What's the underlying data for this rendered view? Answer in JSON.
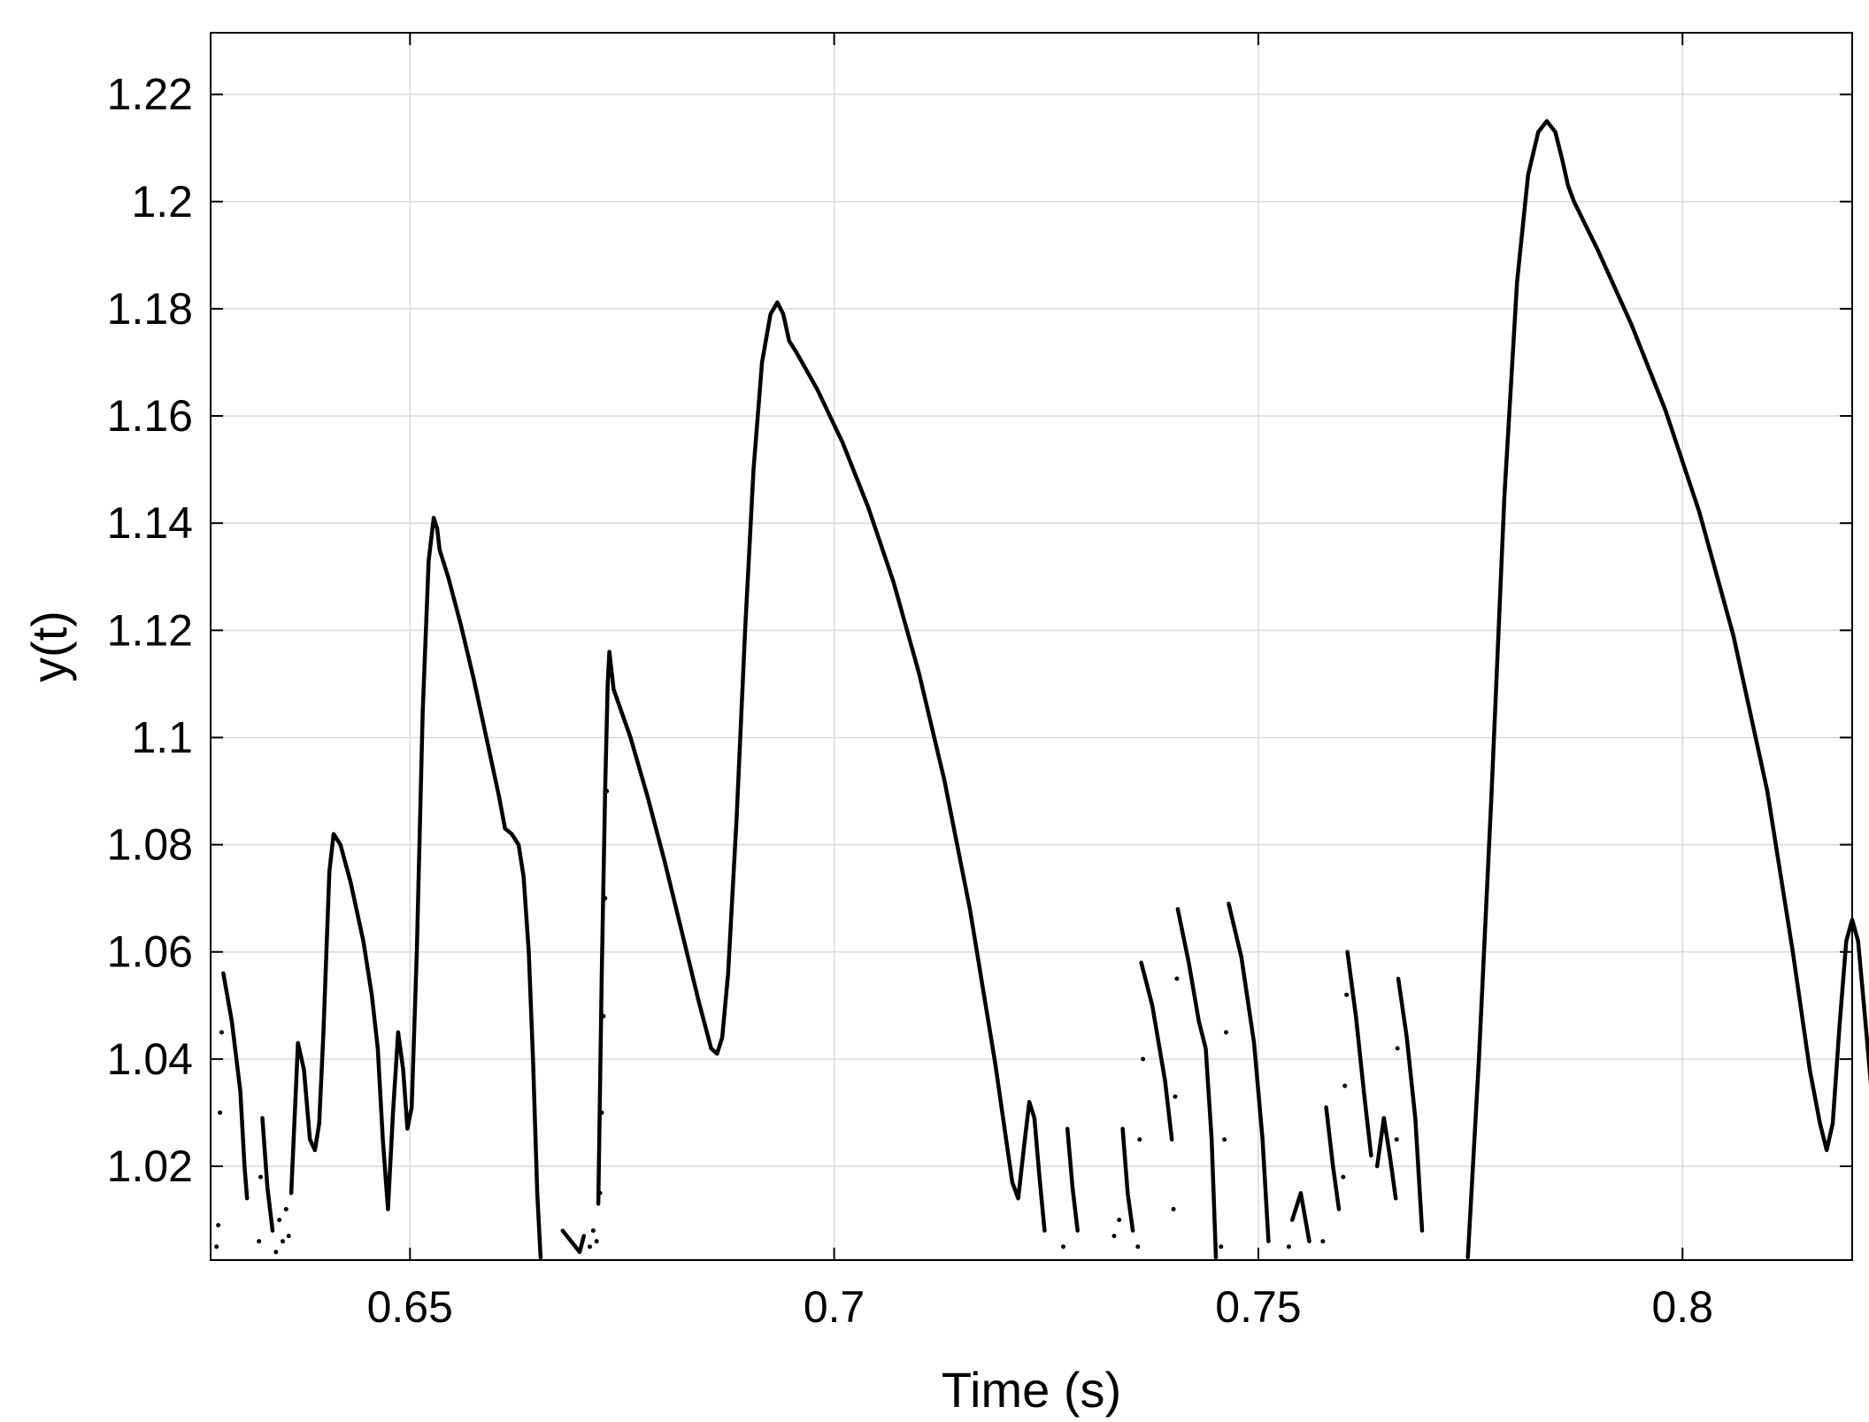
{
  "chart_data": {
    "type": "line",
    "title": "",
    "xlabel": "Time (s)",
    "ylabel": "y(t)",
    "xlim": [
      0.6265,
      0.82
    ],
    "ylim": [
      1.0025,
      1.2315
    ],
    "grid": true,
    "line_color": "#000000",
    "grid_color": "#d9d9d9",
    "xticks": [
      0.65,
      0.7,
      0.75,
      0.8
    ],
    "xtick_labels": [
      "0.65",
      "0.7",
      "0.75",
      "0.8"
    ],
    "yticks": [
      1.02,
      1.04,
      1.06,
      1.08,
      1.1,
      1.12,
      1.14,
      1.16,
      1.18,
      1.2,
      1.22
    ],
    "ytick_labels": [
      "1.02",
      "1.04",
      "1.06",
      "1.08",
      "1.1",
      "1.12",
      "1.14",
      "1.16",
      "1.18",
      "1.2",
      "1.22"
    ],
    "series": [
      {
        "name": "y(t)",
        "segments": [
          [
            [
              0.628,
              1.056
            ],
            [
              0.629,
              1.047
            ],
            [
              0.63,
              1.034
            ],
            [
              0.6305,
              1.02
            ],
            [
              0.6308,
              1.014
            ]
          ],
          [
            [
              0.6326,
              1.029
            ],
            [
              0.6332,
              1.016
            ],
            [
              0.6338,
              1.008
            ]
          ],
          [
            [
              0.636,
              1.015
            ],
            [
              0.6368,
              1.043
            ],
            [
              0.6375,
              1.038
            ],
            [
              0.6382,
              1.025
            ],
            [
              0.6388,
              1.023
            ],
            [
              0.6393,
              1.028
            ],
            [
              0.6398,
              1.045
            ],
            [
              0.6405,
              1.075
            ],
            [
              0.641,
              1.082
            ],
            [
              0.6418,
              1.08
            ],
            [
              0.643,
              1.073
            ],
            [
              0.6445,
              1.062
            ],
            [
              0.6455,
              1.052
            ],
            [
              0.6462,
              1.042
            ],
            [
              0.6468,
              1.025
            ],
            [
              0.6474,
              1.012
            ],
            [
              0.648,
              1.03
            ],
            [
              0.6486,
              1.045
            ],
            [
              0.6492,
              1.038
            ],
            [
              0.6497,
              1.027
            ],
            [
              0.6502,
              1.031
            ],
            [
              0.6508,
              1.06
            ],
            [
              0.6515,
              1.105
            ],
            [
              0.6522,
              1.133
            ],
            [
              0.6528,
              1.141
            ],
            [
              0.6532,
              1.139
            ],
            [
              0.6535,
              1.135
            ],
            [
              0.6545,
              1.13
            ],
            [
              0.656,
              1.121
            ],
            [
              0.6575,
              1.111
            ],
            [
              0.659,
              1.1
            ],
            [
              0.6605,
              1.089
            ],
            [
              0.6612,
              1.083
            ],
            [
              0.662,
              1.082
            ],
            [
              0.6628,
              1.08
            ],
            [
              0.6634,
              1.074
            ],
            [
              0.664,
              1.06
            ],
            [
              0.6645,
              1.04
            ],
            [
              0.665,
              1.015
            ],
            [
              0.6654,
              1.003
            ]
          ],
          [
            [
              0.668,
              1.008
            ],
            [
              0.669,
              1.006
            ],
            [
              0.67,
              1.004
            ],
            [
              0.6705,
              1.007
            ]
          ],
          [
            [
              0.6722,
              1.013
            ],
            [
              0.6726,
              1.055
            ],
            [
              0.673,
              1.09
            ],
            [
              0.6733,
              1.11
            ],
            [
              0.6735,
              1.116
            ],
            [
              0.674,
              1.109
            ],
            [
              0.676,
              1.1
            ],
            [
              0.678,
              1.089
            ],
            [
              0.68,
              1.077
            ],
            [
              0.682,
              1.064
            ],
            [
              0.684,
              1.051
            ],
            [
              0.6855,
              1.042
            ],
            [
              0.6862,
              1.041
            ],
            [
              0.6868,
              1.044
            ],
            [
              0.6875,
              1.056
            ],
            [
              0.6885,
              1.085
            ],
            [
              0.6895,
              1.12
            ],
            [
              0.6905,
              1.15
            ],
            [
              0.6915,
              1.17
            ],
            [
              0.6925,
              1.179
            ],
            [
              0.6933,
              1.1812
            ],
            [
              0.694,
              1.179
            ],
            [
              0.6947,
              1.174
            ],
            [
              0.6955,
              1.172
            ],
            [
              0.698,
              1.165
            ],
            [
              0.701,
              1.155
            ],
            [
              0.704,
              1.143
            ],
            [
              0.707,
              1.129
            ],
            [
              0.71,
              1.112
            ],
            [
              0.713,
              1.092
            ],
            [
              0.716,
              1.068
            ],
            [
              0.719,
              1.039
            ],
            [
              0.721,
              1.017
            ],
            [
              0.7217,
              1.014
            ],
            [
              0.7224,
              1.024
            ],
            [
              0.723,
              1.032
            ],
            [
              0.7236,
              1.029
            ],
            [
              0.7242,
              1.018
            ],
            [
              0.7248,
              1.008
            ]
          ],
          [
            [
              0.7275,
              1.027
            ],
            [
              0.7281,
              1.016
            ],
            [
              0.7287,
              1.008
            ]
          ],
          [
            [
              0.734,
              1.027
            ],
            [
              0.7346,
              1.015
            ],
            [
              0.7352,
              1.008
            ]
          ],
          [
            [
              0.7362,
              1.058
            ],
            [
              0.7375,
              1.05
            ],
            [
              0.739,
              1.036
            ],
            [
              0.7398,
              1.025
            ]
          ],
          [
            [
              0.7405,
              1.068
            ],
            [
              0.7418,
              1.058
            ],
            [
              0.743,
              1.047
            ],
            [
              0.7438,
              1.042
            ],
            [
              0.7445,
              1.025
            ],
            [
              0.745,
              1.003
            ]
          ],
          [
            [
              0.7465,
              1.069
            ],
            [
              0.748,
              1.059
            ],
            [
              0.7495,
              1.043
            ],
            [
              0.7505,
              1.025
            ],
            [
              0.7512,
              1.006
            ]
          ],
          [
            [
              0.754,
              1.01
            ],
            [
              0.755,
              1.015
            ],
            [
              0.756,
              1.006
            ]
          ],
          [
            [
              0.758,
              1.031
            ],
            [
              0.7588,
              1.02
            ],
            [
              0.7595,
              1.012
            ]
          ],
          [
            [
              0.7605,
              1.06
            ],
            [
              0.7615,
              1.048
            ],
            [
              0.7625,
              1.033
            ],
            [
              0.7633,
              1.022
            ]
          ],
          [
            [
              0.764,
              1.02
            ],
            [
              0.7648,
              1.029
            ],
            [
              0.7655,
              1.022
            ],
            [
              0.7662,
              1.014
            ]
          ],
          [
            [
              0.7665,
              1.055
            ],
            [
              0.7675,
              1.044
            ],
            [
              0.7685,
              1.029
            ],
            [
              0.7693,
              1.008
            ]
          ],
          [
            [
              0.7747,
              1.003
            ],
            [
              0.776,
              1.04
            ],
            [
              0.7775,
              1.09
            ],
            [
              0.779,
              1.145
            ],
            [
              0.7805,
              1.185
            ],
            [
              0.7818,
              1.205
            ],
            [
              0.783,
              1.213
            ],
            [
              0.784,
              1.215
            ],
            [
              0.785,
              1.213
            ],
            [
              0.7858,
              1.208
            ],
            [
              0.7865,
              1.203
            ],
            [
              0.7872,
              1.2
            ],
            [
              0.79,
              1.191
            ],
            [
              0.794,
              1.177
            ],
            [
              0.798,
              1.161
            ],
            [
              0.802,
              1.142
            ],
            [
              0.806,
              1.119
            ],
            [
              0.81,
              1.09
            ],
            [
              0.813,
              1.06
            ],
            [
              0.815,
              1.038
            ],
            [
              0.8162,
              1.028
            ],
            [
              0.817,
              1.023
            ],
            [
              0.8177,
              1.028
            ],
            [
              0.8185,
              1.046
            ],
            [
              0.8193,
              1.062
            ],
            [
              0.82,
              1.066
            ],
            [
              0.8207,
              1.062
            ],
            [
              0.8215,
              1.048
            ],
            [
              0.8225,
              1.03
            ],
            [
              0.8235,
              1.013
            ],
            [
              0.824,
              1.003
            ]
          ],
          [
            [
              0.8252,
              1.022
            ],
            [
              0.8258,
              1.014
            ],
            [
              0.8262,
              1.006
            ]
          ]
        ]
      }
    ],
    "scatter_series": [
      {
        "name": "sparse-points",
        "points": [
          [
            0.6272,
            1.005
          ],
          [
            0.6274,
            1.009
          ],
          [
            0.6276,
            1.03
          ],
          [
            0.6278,
            1.045
          ],
          [
            0.6322,
            1.006
          ],
          [
            0.6324,
            1.018
          ],
          [
            0.6342,
            1.004
          ],
          [
            0.6346,
            1.01
          ],
          [
            0.635,
            1.006
          ],
          [
            0.6354,
            1.012
          ],
          [
            0.6357,
            1.007
          ],
          [
            0.6712,
            1.005
          ],
          [
            0.6716,
            1.008
          ],
          [
            0.672,
            1.006
          ],
          [
            0.6724,
            1.015
          ],
          [
            0.6726,
            1.03
          ],
          [
            0.6728,
            1.048
          ],
          [
            0.673,
            1.07
          ],
          [
            0.6732,
            1.09
          ],
          [
            0.727,
            1.005
          ],
          [
            0.733,
            1.007
          ],
          [
            0.7336,
            1.01
          ],
          [
            0.7358,
            1.005
          ],
          [
            0.736,
            1.025
          ],
          [
            0.7364,
            1.04
          ],
          [
            0.74,
            1.012
          ],
          [
            0.7402,
            1.033
          ],
          [
            0.7404,
            1.055
          ],
          [
            0.7456,
            1.005
          ],
          [
            0.746,
            1.025
          ],
          [
            0.7462,
            1.045
          ],
          [
            0.7536,
            1.005
          ],
          [
            0.7576,
            1.006
          ],
          [
            0.76,
            1.018
          ],
          [
            0.7602,
            1.035
          ],
          [
            0.7604,
            1.052
          ],
          [
            0.7663,
            1.025
          ],
          [
            0.7664,
            1.042
          ],
          [
            0.8246,
            1.004
          ],
          [
            0.8249,
            1.01
          ],
          [
            0.8254,
            1.005
          ],
          [
            0.8266,
            1.008
          ]
        ]
      }
    ]
  }
}
